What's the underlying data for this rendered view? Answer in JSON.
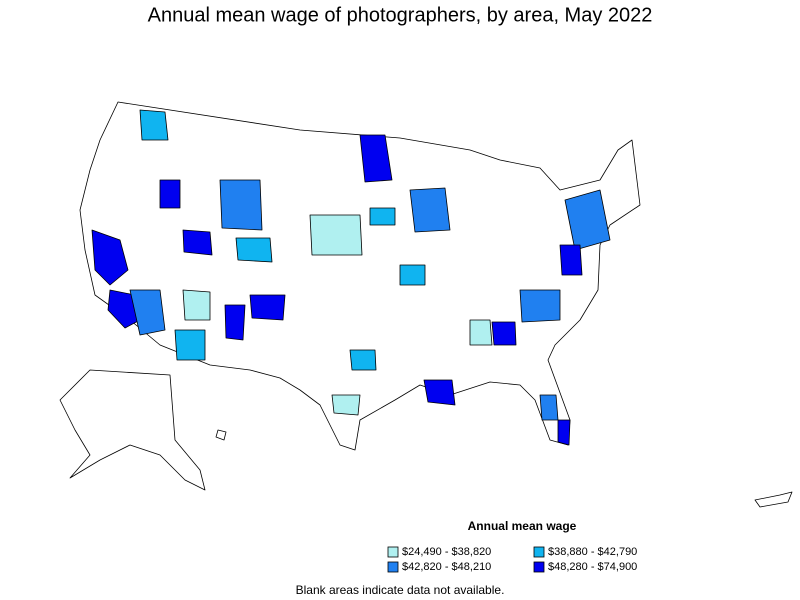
{
  "title": "Annual mean wage of photographers, by area, May 2022",
  "legend": {
    "title": "Annual mean wage",
    "items": [
      {
        "label": "$24,490 - $38,820",
        "color": "#b0f0f0"
      },
      {
        "label": "$38,880 - $42,790",
        "color": "#10b4f0"
      },
      {
        "label": "$42,820 - $48,210",
        "color": "#2080f0"
      },
      {
        "label": "$48,280 - $74,900",
        "color": "#0000f0"
      }
    ]
  },
  "footnote": "Blank areas indicate data not available."
}
